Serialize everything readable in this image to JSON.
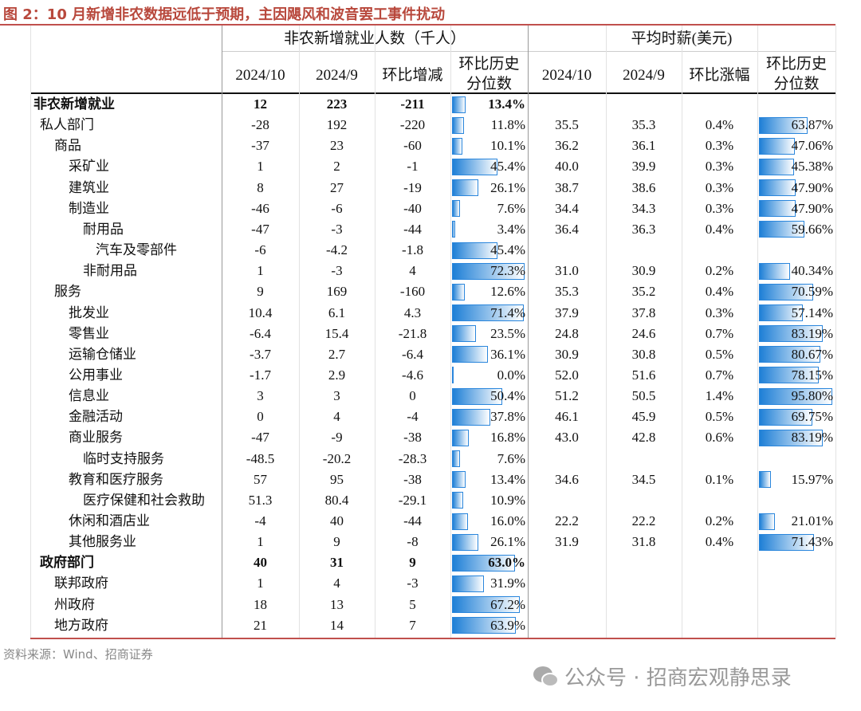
{
  "title": "图 2：10 月新增非农数据远低于预期，主因飓风和波音罢工事件扰动",
  "table": {
    "group_headers": [
      "非农新增就业人数（千人）",
      "平均时薪(美元)"
    ],
    "columns": [
      "2024/10",
      "2024/9",
      "环比增减",
      "环比历史分位数",
      "2024/10",
      "2024/9",
      "环比涨幅",
      "环比历史分位数"
    ],
    "rows": [
      [
        "非农新增就业",
        "12",
        "223",
        "-211",
        "13.4%",
        null,
        null,
        null,
        null
      ],
      [
        "私人部门",
        "-28",
        "192",
        "-220",
        "11.8%",
        "35.5",
        "35.3",
        "0.4%",
        "63.87%"
      ],
      [
        "商品",
        "-37",
        "23",
        "-60",
        "10.1%",
        "36.2",
        "36.1",
        "0.3%",
        "47.06%"
      ],
      [
        "采矿业",
        "1",
        "2",
        "-1",
        "45.4%",
        "40.0",
        "39.9",
        "0.3%",
        "45.38%"
      ],
      [
        "建筑业",
        "8",
        "27",
        "-19",
        "26.1%",
        "38.7",
        "38.6",
        "0.3%",
        "47.90%"
      ],
      [
        "制造业",
        "-46",
        "-6",
        "-40",
        "7.6%",
        "34.4",
        "34.3",
        "0.3%",
        "47.90%"
      ],
      [
        "耐用品",
        "-47",
        "-3",
        "-44",
        "3.4%",
        "36.4",
        "36.3",
        "0.4%",
        "59.66%"
      ],
      [
        "汽车及零部件",
        "-6",
        "-4.2",
        "-1.8",
        "45.4%",
        null,
        null,
        null,
        null
      ],
      [
        "非耐用品",
        "1",
        "-3",
        "4",
        "72.3%",
        "31.0",
        "30.9",
        "0.2%",
        "40.34%"
      ],
      [
        "服务",
        "9",
        "169",
        "-160",
        "12.6%",
        "35.3",
        "35.2",
        "0.4%",
        "70.59%"
      ],
      [
        "批发业",
        "10.4",
        "6.1",
        "4.3",
        "71.4%",
        "37.9",
        "37.8",
        "0.3%",
        "57.14%"
      ],
      [
        "零售业",
        "-6.4",
        "15.4",
        "-21.8",
        "23.5%",
        "24.8",
        "24.6",
        "0.7%",
        "83.19%"
      ],
      [
        "运输仓储业",
        "-3.7",
        "2.7",
        "-6.4",
        "36.1%",
        "30.9",
        "30.8",
        "0.5%",
        "80.67%"
      ],
      [
        "公用事业",
        "-1.7",
        "2.9",
        "-4.6",
        "0.0%",
        "52.0",
        "51.6",
        "0.7%",
        "78.15%"
      ],
      [
        "信息业",
        "3",
        "3",
        "0",
        "50.4%",
        "51.2",
        "50.5",
        "1.4%",
        "95.80%"
      ],
      [
        "金融活动",
        "0",
        "4",
        "-4",
        "37.8%",
        "46.1",
        "45.9",
        "0.5%",
        "69.75%"
      ],
      [
        "商业服务",
        "-47",
        "-9",
        "-38",
        "16.8%",
        "43.0",
        "42.8",
        "0.6%",
        "83.19%"
      ],
      [
        "临时支持服务",
        "-48.5",
        "-20.2",
        "-28.3",
        "7.6%",
        null,
        null,
        null,
        null
      ],
      [
        "教育和医疗服务",
        "57",
        "95",
        "-38",
        "13.4%",
        "34.6",
        "34.5",
        "0.1%",
        "15.97%"
      ],
      [
        "医疗保健和社会救助",
        "51.3",
        "80.4",
        "-29.1",
        "10.9%",
        null,
        null,
        null,
        null
      ],
      [
        "休闲和酒店业",
        "-4",
        "40",
        "-44",
        "16.0%",
        "22.2",
        "22.2",
        "0.2%",
        "21.01%"
      ],
      [
        "其他服务业",
        "1",
        "9",
        "-8",
        "26.1%",
        "31.9",
        "31.8",
        "0.4%",
        "71.43%"
      ],
      [
        "政府部门",
        "40",
        "31",
        "9",
        "63.0%",
        null,
        null,
        null,
        null
      ],
      [
        "联邦政府",
        "1",
        "4",
        "-3",
        "31.9%",
        null,
        null,
        null,
        null
      ],
      [
        "州政府",
        "18",
        "13",
        "5",
        "67.2%",
        null,
        null,
        null,
        null
      ],
      [
        "地方政府",
        "21",
        "14",
        "7",
        "63.9%",
        null,
        null,
        null,
        null
      ]
    ]
  },
  "source": "资料来源：Wind、招商证券",
  "watermark": "公众号 · 招商宏观静思录"
}
